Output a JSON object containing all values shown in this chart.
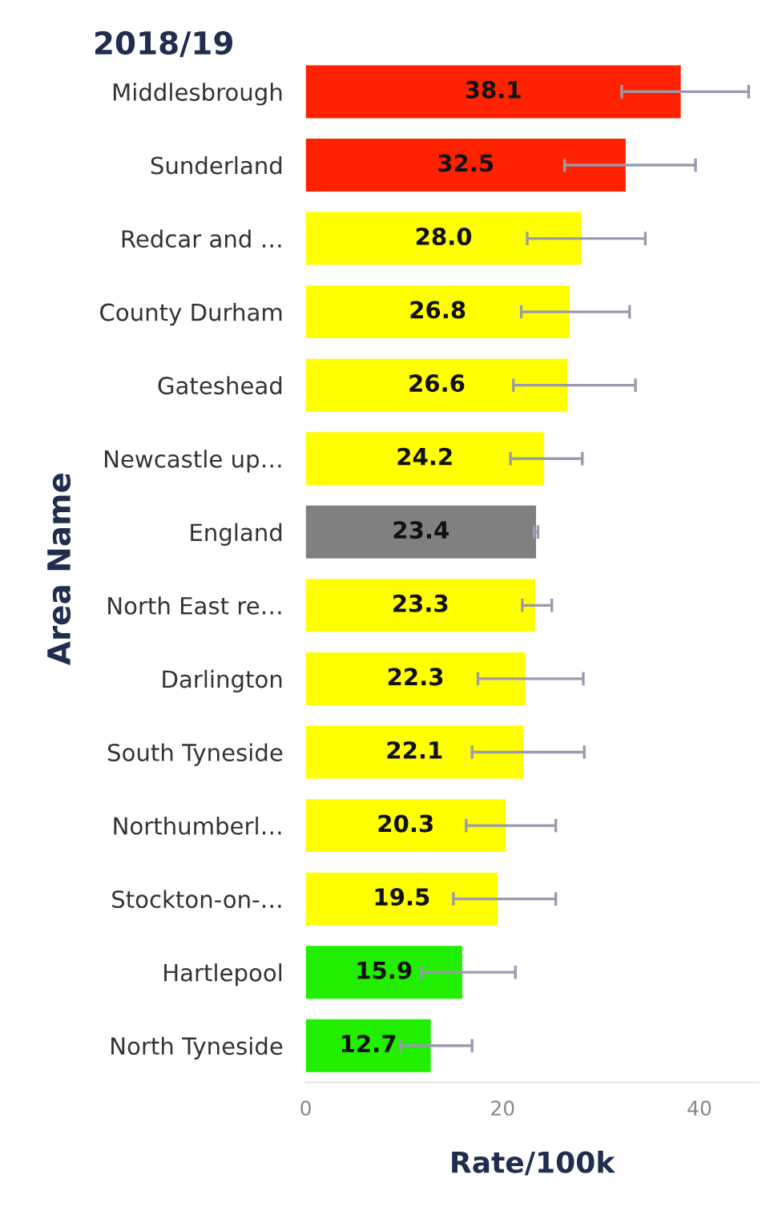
{
  "chart_data": {
    "type": "bar",
    "orientation": "horizontal",
    "title": "2018/19",
    "xlabel": "Rate/100k",
    "ylabel": "Area Name",
    "categories": [
      "Middlesbrough",
      "Sunderland",
      "Redcar and …",
      "County Durham",
      "Gateshead",
      "Newcastle up…",
      "England",
      "North East re…",
      "Darlington",
      "South Tyneside",
      "Northumberl…",
      "Stockton-on-…",
      "Hartlepool",
      "North Tyneside"
    ],
    "values": [
      38.1,
      32.5,
      28.0,
      26.8,
      26.6,
      24.2,
      23.4,
      23.3,
      22.3,
      22.1,
      20.3,
      19.5,
      15.9,
      12.7
    ],
    "colors": [
      "#ff2200",
      "#ff2200",
      "#ffff00",
      "#ffff00",
      "#ffff00",
      "#ffff00",
      "#808080",
      "#ffff00",
      "#ffff00",
      "#ffff00",
      "#ffff00",
      "#ffff00",
      "#22ee00",
      "#22ee00"
    ],
    "errors": [
      [
        32.1,
        45.0
      ],
      [
        26.3,
        39.6
      ],
      [
        22.5,
        34.5
      ],
      [
        21.9,
        32.9
      ],
      [
        21.1,
        33.5
      ],
      [
        20.8,
        28.1
      ],
      [
        23.2,
        23.6
      ],
      [
        22.0,
        25.0
      ],
      [
        17.5,
        28.2
      ],
      [
        16.9,
        28.3
      ],
      [
        16.3,
        25.4
      ],
      [
        15.0,
        25.4
      ],
      [
        11.8,
        21.3
      ],
      [
        9.6,
        16.9
      ]
    ],
    "value_labels": [
      "38.1",
      "32.5",
      "28.0",
      "26.8",
      "26.6",
      "24.2",
      "23.4",
      "23.3",
      "22.3",
      "22.1",
      "20.3",
      "19.5",
      "15.9",
      "12.7"
    ],
    "xlim": [
      0,
      46
    ],
    "xticks": [
      0,
      20,
      40
    ],
    "grid": false,
    "legend": false
  }
}
